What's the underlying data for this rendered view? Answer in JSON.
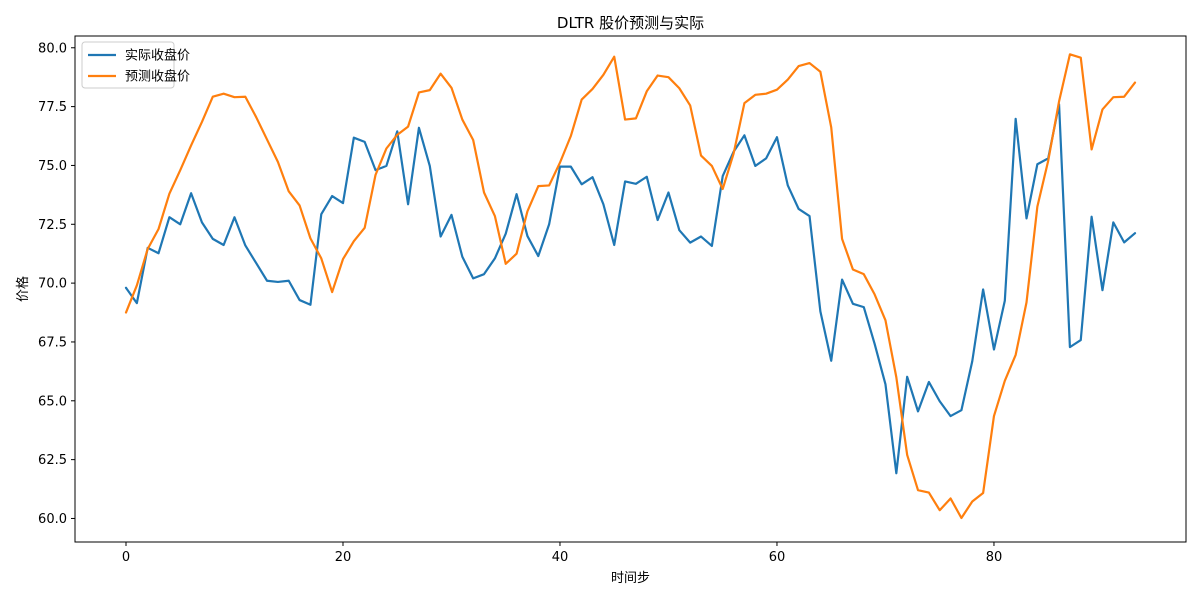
{
  "chart_data": {
    "type": "line",
    "title": "DLTR 股价预测与实际",
    "xlabel": "时间步",
    "ylabel": "价格",
    "xlim": [
      -4.7,
      97.7
    ],
    "ylim": [
      59.0,
      80.5
    ],
    "xticks": [
      0,
      20,
      40,
      60,
      80
    ],
    "yticks": [
      60.0,
      62.5,
      65.0,
      67.5,
      70.0,
      72.5,
      75.0,
      77.5,
      80.0
    ],
    "grid": false,
    "legend": "top-left",
    "series": [
      {
        "name": "实际收盘价",
        "color": "#1f77b4",
        "x": [
          0,
          1,
          2,
          3,
          4,
          5,
          6,
          7,
          8,
          9,
          10,
          11,
          12,
          13,
          14,
          15,
          16,
          17,
          18,
          19,
          20,
          21,
          22,
          23,
          24,
          25,
          26,
          27,
          28,
          29,
          30,
          31,
          32,
          33,
          34,
          35,
          36,
          37,
          38,
          39,
          40,
          41,
          42,
          43,
          44,
          45,
          46,
          47,
          48,
          49,
          50,
          51,
          52,
          53,
          54,
          55,
          56,
          57,
          58,
          59,
          60,
          61,
          62,
          63,
          64,
          65,
          66,
          67,
          68,
          69,
          70,
          71,
          72,
          73,
          74,
          75,
          76,
          77,
          78,
          79,
          80,
          81,
          82,
          83,
          84,
          85,
          86,
          87,
          88,
          89,
          90,
          91,
          92,
          93
        ],
        "values": [
          69.8,
          69.15,
          71.5,
          71.27,
          72.8,
          72.5,
          73.82,
          72.58,
          71.88,
          71.62,
          72.8,
          71.6,
          70.85,
          70.1,
          70.05,
          70.1,
          69.28,
          69.08,
          72.93,
          73.7,
          73.4,
          76.18,
          76.0,
          74.8,
          74.98,
          76.45,
          73.35,
          76.6,
          74.98,
          71.98,
          72.9,
          71.12,
          70.2,
          70.38,
          71.05,
          72.1,
          73.78,
          72.0,
          71.15,
          72.5,
          74.95,
          74.95,
          74.2,
          74.5,
          73.35,
          71.62,
          74.32,
          74.22,
          74.52,
          72.68,
          73.85,
          72.25,
          71.72,
          71.98,
          71.58,
          74.55,
          75.58,
          76.28,
          74.98,
          75.3,
          76.2,
          74.15,
          73.15,
          72.85,
          68.8,
          66.7,
          70.15,
          69.12,
          68.98,
          67.42,
          65.7,
          61.92,
          66.02,
          64.55,
          65.8,
          64.98,
          64.35,
          64.6,
          66.68,
          69.73,
          67.18,
          69.25,
          76.98,
          72.75,
          75.05,
          75.3,
          77.6,
          67.28,
          67.58,
          72.82,
          69.7,
          72.58,
          71.73,
          72.12
        ]
      },
      {
        "name": "预测收盘价",
        "color": "#ff7f0e",
        "x": [
          0,
          1,
          2,
          3,
          4,
          5,
          6,
          7,
          8,
          9,
          10,
          11,
          12,
          13,
          14,
          15,
          16,
          17,
          18,
          19,
          20,
          21,
          22,
          23,
          24,
          25,
          26,
          27,
          28,
          29,
          30,
          31,
          32,
          33,
          34,
          35,
          36,
          37,
          38,
          39,
          40,
          41,
          42,
          43,
          44,
          45,
          46,
          47,
          48,
          49,
          50,
          51,
          52,
          53,
          54,
          55,
          56,
          57,
          58,
          59,
          60,
          61,
          62,
          63,
          64,
          65,
          66,
          67,
          68,
          69,
          70,
          71,
          72,
          73,
          74,
          75,
          76,
          77,
          78,
          79,
          80,
          81,
          82,
          83,
          84,
          85,
          86,
          87,
          88,
          89,
          90,
          91,
          92,
          93
        ],
        "values": [
          68.75,
          69.9,
          71.45,
          72.3,
          73.8,
          74.8,
          75.85,
          76.85,
          77.92,
          78.05,
          77.9,
          77.92,
          77.05,
          76.1,
          75.15,
          73.9,
          73.3,
          71.9,
          71.05,
          69.62,
          71.02,
          71.78,
          72.35,
          74.6,
          75.72,
          76.3,
          76.65,
          78.1,
          78.2,
          78.9,
          78.3,
          76.95,
          76.08,
          73.85,
          72.85,
          70.82,
          71.25,
          73.05,
          74.12,
          74.15,
          75.12,
          76.25,
          77.8,
          78.25,
          78.85,
          79.62,
          76.95,
          77.0,
          78.15,
          78.82,
          78.75,
          78.28,
          77.55,
          75.42,
          74.98,
          74.0,
          75.5,
          77.65,
          78.0,
          78.05,
          78.22,
          78.65,
          79.22,
          79.35,
          78.98,
          76.62,
          71.88,
          70.58,
          70.38,
          69.52,
          68.42,
          66.0,
          62.7,
          61.2,
          61.1,
          60.35,
          60.85,
          60.02,
          60.72,
          61.08,
          64.35,
          65.85,
          66.95,
          69.18,
          73.25,
          75.2,
          77.72,
          79.72,
          79.58,
          75.68,
          77.38,
          77.9,
          77.92,
          78.52
        ]
      }
    ]
  }
}
